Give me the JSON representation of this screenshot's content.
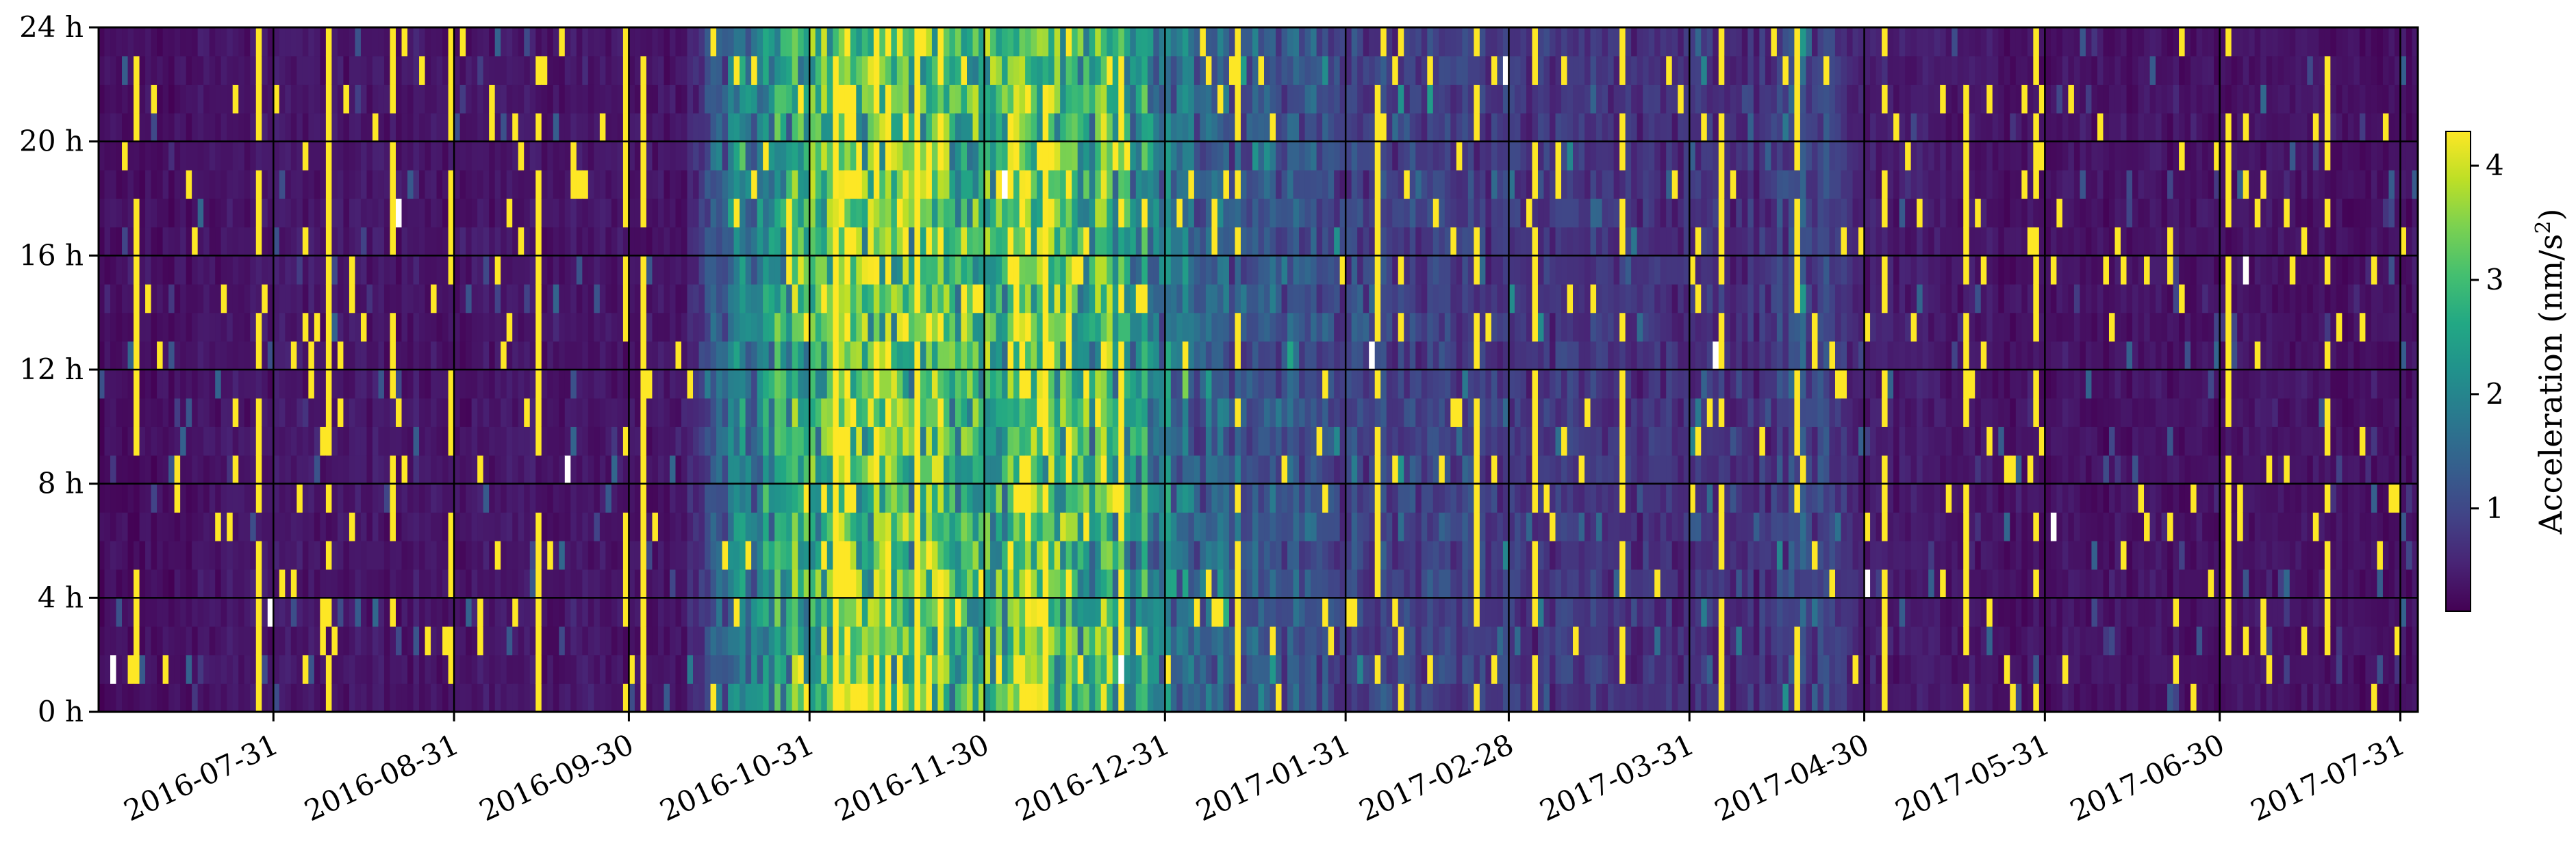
{
  "chart_data": {
    "type": "heatmap",
    "title": "",
    "xlabel": "",
    "ylabel": "",
    "x_tick_labels": [
      "2016-07-31",
      "2016-08-31",
      "2016-09-30",
      "2016-10-31",
      "2016-11-30",
      "2016-12-31",
      "2017-01-31",
      "2017-02-28",
      "2017-03-31",
      "2017-04-30",
      "2017-05-31",
      "2017-06-30",
      "2017-07-31"
    ],
    "x_tick_days": [
      0,
      31,
      61,
      92,
      122,
      153,
      184,
      212,
      243,
      273,
      304,
      334,
      365
    ],
    "x_range_days": [
      -30,
      368
    ],
    "y_tick_labels": [
      "0 h",
      "4 h",
      "8 h",
      "12 h",
      "16 h",
      "20 h",
      "24 h"
    ],
    "y_tick_hours": [
      0,
      4,
      8,
      12,
      16,
      20,
      24
    ],
    "ylim": [
      0,
      24
    ],
    "grid": true,
    "colorbar": {
      "label_prefix": "Acceleration (nm/s",
      "label_sup": "2",
      "label_suffix": ")",
      "tick_labels": [
        "1",
        "2",
        "3",
        "4"
      ],
      "tick_values": [
        1,
        2,
        3,
        4
      ],
      "range": [
        0.1,
        4.3
      ],
      "colormap": "viridis"
    },
    "background_level": [
      {
        "day": -30,
        "value": 0.25
      },
      {
        "day": 0,
        "value": 0.35
      },
      {
        "day": 40,
        "value": 0.35
      },
      {
        "day": 70,
        "value": 0.3
      },
      {
        "day": 78,
        "value": 1.5
      },
      {
        "day": 90,
        "value": 2.9
      },
      {
        "day": 102,
        "value": 3.8
      },
      {
        "day": 118,
        "value": 3.0
      },
      {
        "day": 135,
        "value": 3.4
      },
      {
        "day": 150,
        "value": 2.2
      },
      {
        "day": 160,
        "value": 1.4
      },
      {
        "day": 185,
        "value": 1.0
      },
      {
        "day": 212,
        "value": 0.75
      },
      {
        "day": 255,
        "value": 0.65
      },
      {
        "day": 262,
        "value": 1.2
      },
      {
        "day": 272,
        "value": 0.45
      },
      {
        "day": 300,
        "value": 0.3
      },
      {
        "day": 368,
        "value": 0.3
      }
    ],
    "high_bursts_days": [
      -24,
      -3,
      9,
      20,
      30,
      45,
      60,
      63,
      96,
      110,
      132,
      145,
      165,
      189,
      206,
      216,
      231,
      248,
      261,
      276,
      290,
      302,
      335,
      352
    ],
    "missing_points": [
      {
        "day": -28,
        "hour": 1
      },
      {
        "day": -1,
        "hour": 3
      },
      {
        "day": 21,
        "hour": 17
      },
      {
        "day": 50,
        "hour": 8
      },
      {
        "day": 125,
        "hour": 18
      },
      {
        "day": 145,
        "hour": 1
      },
      {
        "day": 188,
        "hour": 12
      },
      {
        "day": 211,
        "hour": 22
      },
      {
        "day": 247,
        "hour": 12
      },
      {
        "day": 273,
        "hour": 4
      },
      {
        "day": 305,
        "hour": 6
      },
      {
        "day": 338,
        "hour": 15
      }
    ]
  }
}
